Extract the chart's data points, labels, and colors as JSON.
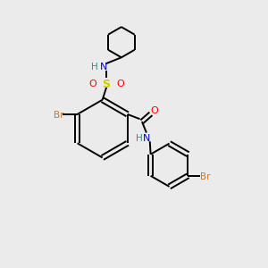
{
  "background_color": "#ebebeb",
  "bond_color": "#000000",
  "atom_colors": {
    "Br": "#cc7722",
    "N": "#0000cc",
    "S": "#cccc00",
    "O": "#ff0000",
    "H": "#2f8f8f",
    "C": "#000000"
  },
  "figsize": [
    3.0,
    3.0
  ],
  "dpi": 100
}
